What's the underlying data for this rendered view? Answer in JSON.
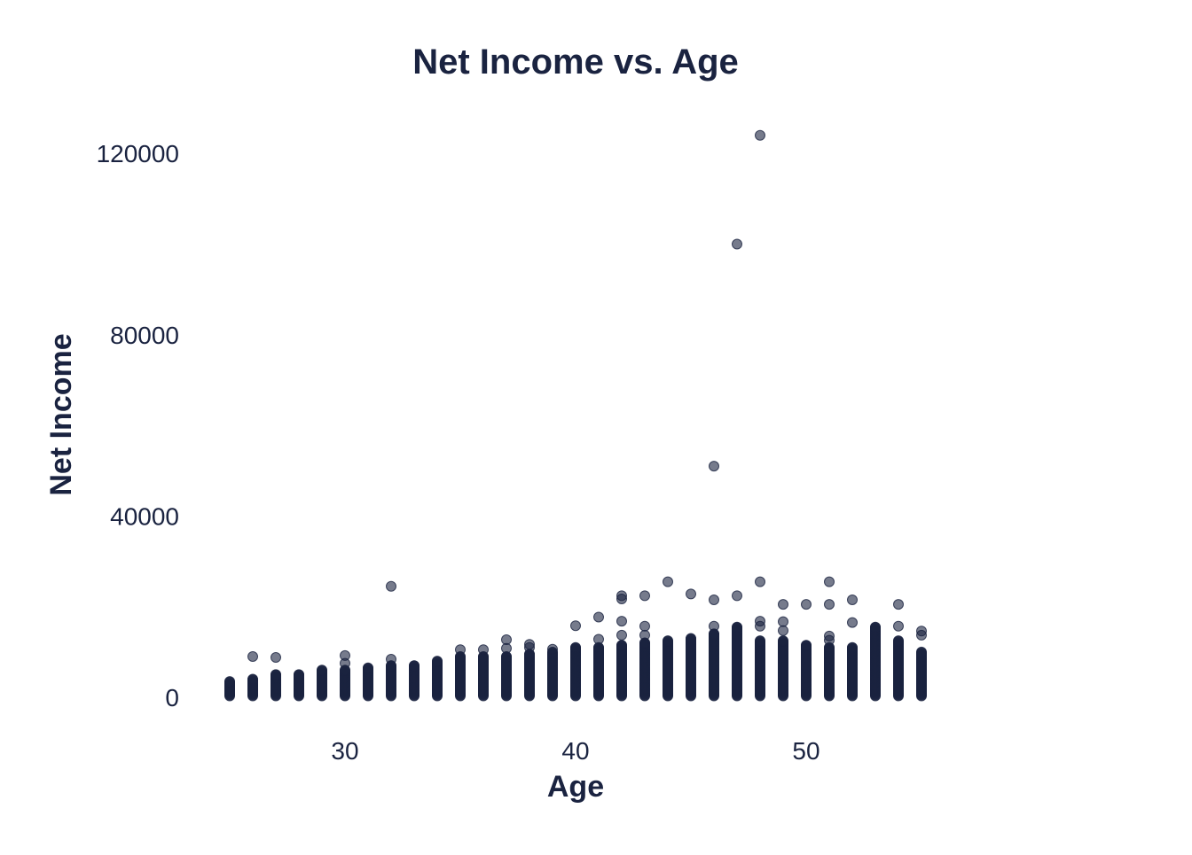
{
  "chart_data": {
    "type": "scatter",
    "title": "Net Income vs. Age",
    "xlabel": "Age",
    "ylabel": "Net Income",
    "xlim": [
      24,
      56
    ],
    "ylim": [
      0,
      124000
    ],
    "x_ticks": [
      30,
      40,
      50
    ],
    "y_ticks": [
      0,
      40000,
      80000,
      120000
    ],
    "grid": false,
    "legend": "none",
    "point_color": "#1a2340",
    "point_opacity": 0.6,
    "columns": [
      {
        "x": 25,
        "max": 3500,
        "outliers": []
      },
      {
        "x": 26,
        "max": 4000,
        "outliers": [
          9000
        ]
      },
      {
        "x": 27,
        "max": 5000,
        "outliers": [
          8800
        ]
      },
      {
        "x": 28,
        "max": 5000,
        "outliers": []
      },
      {
        "x": 29,
        "max": 6000,
        "outliers": []
      },
      {
        "x": 30,
        "max": 6000,
        "outliers": [
          7500,
          9200
        ]
      },
      {
        "x": 31,
        "max": 6500,
        "outliers": []
      },
      {
        "x": 32,
        "max": 7000,
        "outliers": [
          8400,
          24500
        ]
      },
      {
        "x": 33,
        "max": 7000,
        "outliers": []
      },
      {
        "x": 34,
        "max": 8000,
        "outliers": []
      },
      {
        "x": 35,
        "max": 9000,
        "outliers": [
          10500
        ]
      },
      {
        "x": 36,
        "max": 9000,
        "outliers": [
          10500
        ]
      },
      {
        "x": 37,
        "max": 9000,
        "outliers": [
          10800,
          12700
        ]
      },
      {
        "x": 38,
        "max": 9500,
        "outliers": [
          11000,
          11700
        ]
      },
      {
        "x": 39,
        "max": 10000,
        "outliers": [
          10600
        ]
      },
      {
        "x": 40,
        "max": 11000,
        "outliers": [
          15800
        ]
      },
      {
        "x": 41,
        "max": 11000,
        "outliers": [
          12800,
          17700
        ]
      },
      {
        "x": 42,
        "max": 11500,
        "outliers": [
          13700,
          16800,
          21700,
          22400
        ]
      },
      {
        "x": 43,
        "max": 12000,
        "outliers": [
          13700,
          15700,
          22400
        ]
      },
      {
        "x": 44,
        "max": 12500,
        "outliers": [
          25500
        ]
      },
      {
        "x": 45,
        "max": 13000,
        "outliers": [
          22800
        ]
      },
      {
        "x": 46,
        "max": 14000,
        "outliers": [
          15700,
          21500,
          51000
        ]
      },
      {
        "x": 47,
        "max": 15500,
        "outliers": [
          22400,
          100000
        ]
      },
      {
        "x": 48,
        "max": 12500,
        "outliers": [
          15700,
          16800,
          25500,
          124000
        ]
      },
      {
        "x": 49,
        "max": 12500,
        "outliers": [
          14700,
          16700,
          20500
        ]
      },
      {
        "x": 50,
        "max": 11500,
        "outliers": [
          20500
        ]
      },
      {
        "x": 51,
        "max": 11000,
        "outliers": [
          12600,
          13500,
          20500,
          25500
        ]
      },
      {
        "x": 52,
        "max": 11000,
        "outliers": [
          16500,
          21500
        ]
      },
      {
        "x": 53,
        "max": 15500,
        "outliers": []
      },
      {
        "x": 54,
        "max": 12500,
        "outliers": [
          15700,
          20500
        ]
      },
      {
        "x": 55,
        "max": 10000,
        "outliers": [
          13700,
          14600
        ]
      }
    ]
  }
}
